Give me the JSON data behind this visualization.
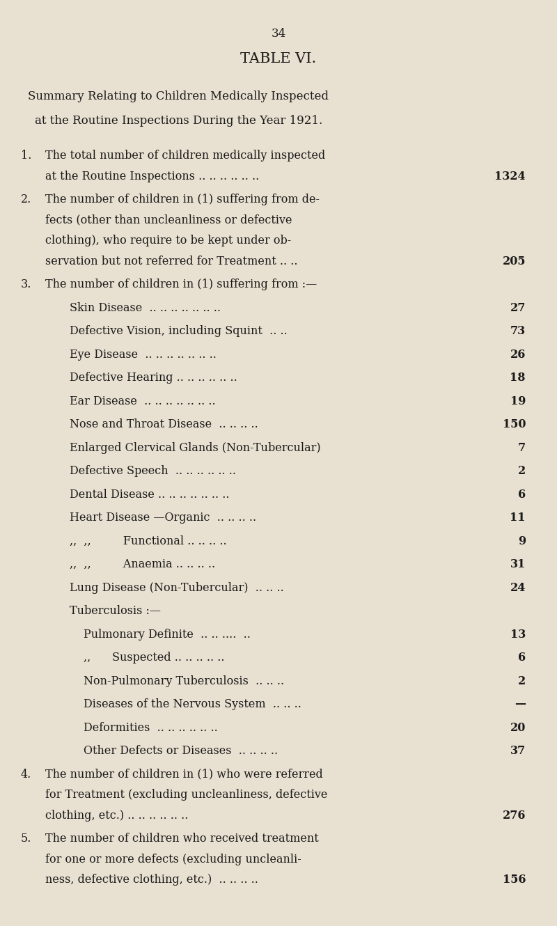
{
  "page_number": "34",
  "title1": "TABLE VI.",
  "subtitle1": "Summary Relating to Children Medically Inspected",
  "subtitle2": "at the Routine Inspections During the Year 1921.",
  "bg_color": "#e8e0d0",
  "text_color": "#1a1a1a",
  "entries": [
    {
      "number": "1",
      "text": "The total number of children medically inspected\n    at the Routine Inspections .. .. .. .. .. ..",
      "value": "1324",
      "indent": 0
    },
    {
      "number": "2",
      "text": "The number of children in (1) suffering from de-\n    fects (other than uncleanliness or defective\n    clothing), who require to be kept under ob-\n    servation but not referred for Treatment .. ..",
      "value": "205",
      "indent": 0
    },
    {
      "number": "3",
      "text": "The number of children in (1) suffering from :—",
      "value": "",
      "indent": 0
    },
    {
      "number": "",
      "text": "Skin Disease  .. .. .. .. .. .. ..",
      "value": "27",
      "indent": 1
    },
    {
      "number": "",
      "text": "Defective Vision, including Squint  .. ..",
      "value": "73",
      "indent": 1
    },
    {
      "number": "",
      "text": "Eye Disease  .. .. .. .. .. .. ..",
      "value": "26",
      "indent": 1
    },
    {
      "number": "",
      "text": "Defective Hearing .. .. .. .. .. ..",
      "value": "18",
      "indent": 1
    },
    {
      "number": "",
      "text": "Ear Disease  .. .. .. .. .. .. ..",
      "value": "19",
      "indent": 1
    },
    {
      "number": "",
      "text": "Nose and Throat Disease  .. .. .. ..",
      "value": "150",
      "indent": 1
    },
    {
      "number": "",
      "text": "Enlarged Clervical Glands (Non-Tubercular)",
      "value": "7",
      "indent": 1
    },
    {
      "number": "",
      "text": "Defective Speech  .. .. .. .. .. ..",
      "value": "2",
      "indent": 1
    },
    {
      "number": "",
      "text": "Dental Disease .. .. .. .. .. .. ..",
      "value": "6",
      "indent": 1
    },
    {
      "number": "",
      "text": "Heart Disease —Organic  .. .. .. ..",
      "value": "11",
      "indent": 1
    },
    {
      "number": "",
      "text": ",,  ,,         Functional .. .. .. ..",
      "value": "9",
      "indent": 1
    },
    {
      "number": "",
      "text": ",,  ,,         Anaemia .. .. .. ..",
      "value": "31",
      "indent": 1
    },
    {
      "number": "",
      "text": "Lung Disease (Non-Tubercular)  .. .. ..",
      "value": "24",
      "indent": 1
    },
    {
      "number": "",
      "text": "Tuberculosis :—",
      "value": "",
      "indent": 1
    },
    {
      "number": "",
      "text": "Pulmonary Definite  .. .. ....  ..",
      "value": "13",
      "indent": 2
    },
    {
      "number": "",
      "text": ",,      Suspected .. .. .. .. ..",
      "value": "6",
      "indent": 2
    },
    {
      "number": "",
      "text": "Non-Pulmonary Tuberculosis  .. .. ..",
      "value": "2",
      "indent": 2
    },
    {
      "number": "",
      "text": "Diseases of the Nervous System  .. .. ..",
      "value": "—",
      "indent": 2
    },
    {
      "number": "",
      "text": "Deformities  .. .. .. .. .. ..",
      "value": "20",
      "indent": 2
    },
    {
      "number": "",
      "text": "Other Defects or Diseases  .. .. .. ..",
      "value": "37",
      "indent": 2
    },
    {
      "number": "4",
      "text": "The number of children in (1) who were referred\n    for Treatment (excluding uncleanliness, defective\n    clothing, etc.) .. .. .. .. .. ..",
      "value": "276",
      "indent": 0
    },
    {
      "number": "5",
      "text": "The number of children who received treatment\n    for one or more defects (excluding uncleanli-\n    ness, defective clothing, etc.)  .. .. .. ..",
      "value": "156",
      "indent": 0
    }
  ]
}
